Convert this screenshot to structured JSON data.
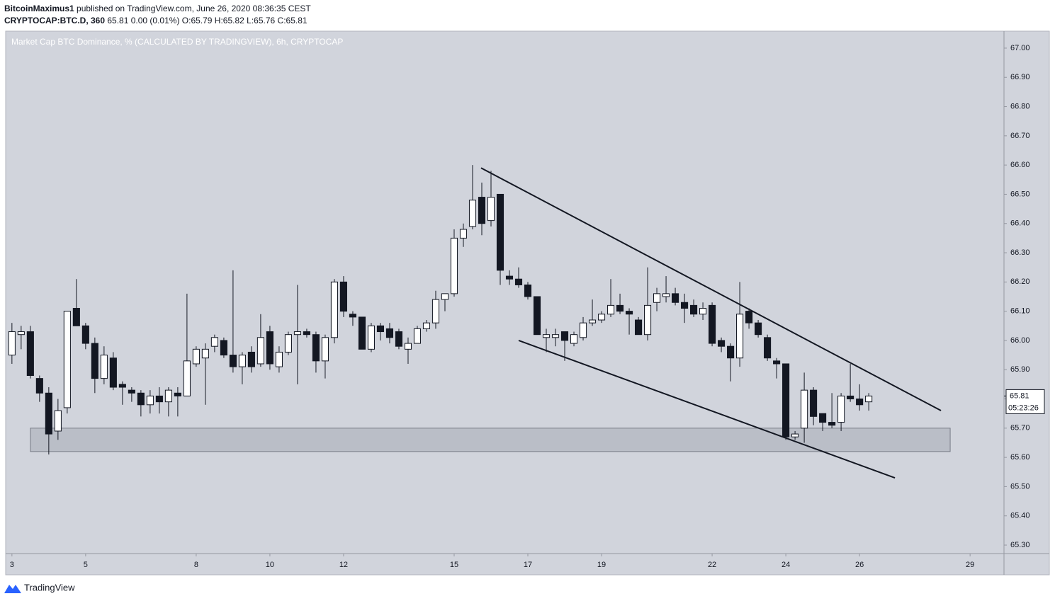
{
  "header": {
    "publisher": "BitcoinMaximus1",
    "published": "published on TradingView.com, June 26, 2020 08:36:35 CEST",
    "symbol": "CRYPTOCAP:BTC.D, 360",
    "quote": "65.81 0.00 (0.01%) O:65.79 H:65.82 L:65.76 C:65.81"
  },
  "footer": "TradingView",
  "chart_data": {
    "type": "candlestick",
    "title": "Market Cap BTC Dominance, % (CALCULATED BY TRADINGVIEW), 6h, CRYPTOCAP",
    "countdown": "05:23:26",
    "up_color": "#ffffff",
    "down_color": "#131722",
    "border_color": "#131722",
    "background": "#d1d4dc",
    "grid": false,
    "x": [
      3,
      3.25,
      3.5,
      3.75,
      4,
      4.25,
      4.5,
      4.75,
      5,
      5.25,
      5.5,
      5.75,
      6,
      6.25,
      6.5,
      6.75,
      7,
      7.25,
      7.5,
      7.75,
      8,
      8.25,
      8.5,
      8.75,
      9,
      9.25,
      9.5,
      9.75,
      10,
      10.25,
      10.5,
      10.75,
      11,
      11.25,
      11.5,
      11.75,
      12,
      12.25,
      12.5,
      12.75,
      13,
      13.25,
      13.5,
      13.75,
      14,
      14.25,
      14.5,
      14.75,
      15,
      15.25,
      15.5,
      15.75,
      16,
      16.25,
      16.5,
      16.75,
      17,
      17.25,
      17.5,
      17.75,
      18,
      18.25,
      18.5,
      18.75,
      19,
      19.25,
      19.5,
      19.75,
      20,
      20.25,
      20.5,
      20.75,
      21,
      21.25,
      21.5,
      21.75,
      22,
      22.25,
      22.5,
      22.75,
      23,
      23.25,
      23.5,
      23.75,
      24,
      24.25,
      24.5,
      24.75,
      25,
      25.25,
      25.5,
      25.75,
      26,
      26.25
    ],
    "open": [
      65.95,
      66.02,
      66.03,
      65.87,
      65.82,
      65.69,
      65.77,
      66.11,
      66.05,
      65.99,
      65.87,
      65.94,
      65.85,
      65.83,
      65.82,
      65.78,
      65.81,
      65.79,
      65.82,
      65.81,
      65.92,
      65.94,
      65.98,
      66.0,
      65.95,
      65.91,
      65.96,
      65.92,
      66.03,
      65.91,
      65.96,
      66.02,
      66.03,
      66.02,
      65.93,
      66.01,
      66.2,
      66.09,
      66.08,
      65.97,
      66.05,
      66.04,
      66.03,
      65.97,
      65.99,
      66.04,
      66.06,
      66.14,
      66.16,
      66.35,
      66.39,
      66.49,
      66.41,
      66.5,
      66.22,
      66.21,
      66.19,
      66.15,
      66.01,
      66.01,
      66.03,
      65.99,
      66.01,
      66.06,
      66.07,
      66.09,
      66.12,
      66.1,
      66.07,
      66.02,
      66.13,
      66.15,
      66.16,
      66.13,
      66.12,
      66.09,
      66.12,
      66.0,
      65.98,
      65.94,
      66.1,
      66.06,
      66.01,
      65.93,
      65.92,
      65.67,
      65.7,
      65.83,
      65.75,
      65.72,
      65.72,
      65.81,
      65.8,
      65.79
    ],
    "high": [
      66.06,
      66.05,
      66.05,
      65.88,
      65.84,
      65.8,
      66.1,
      66.21,
      66.06,
      66.01,
      65.98,
      65.96,
      65.86,
      65.84,
      65.83,
      65.83,
      65.84,
      65.84,
      65.84,
      66.16,
      65.98,
      65.99,
      66.02,
      66.01,
      66.24,
      65.96,
      65.98,
      66.09,
      66.05,
      65.98,
      66.03,
      66.19,
      66.04,
      66.03,
      66.02,
      66.21,
      66.22,
      66.1,
      66.08,
      66.06,
      66.06,
      66.06,
      66.04,
      66.01,
      66.05,
      66.07,
      66.17,
      66.16,
      66.38,
      66.4,
      66.6,
      66.54,
      66.58,
      66.5,
      66.24,
      66.25,
      66.2,
      66.15,
      66.04,
      66.04,
      66.03,
      66.03,
      66.08,
      66.14,
      66.1,
      66.21,
      66.16,
      66.11,
      66.08,
      66.25,
      66.18,
      66.22,
      66.18,
      66.16,
      66.14,
      66.13,
      66.13,
      66.01,
      65.99,
      66.2,
      66.11,
      66.07,
      66.02,
      65.94,
      65.92,
      65.69,
      65.89,
      65.84,
      65.75,
      65.82,
      65.82,
      65.92,
      65.85,
      65.82
    ],
    "low": [
      65.92,
      65.97,
      65.87,
      65.79,
      65.61,
      65.66,
      65.75,
      66.05,
      65.97,
      65.82,
      65.85,
      65.83,
      65.78,
      65.79,
      65.74,
      65.75,
      65.75,
      65.74,
      65.74,
      65.81,
      65.91,
      65.78,
      65.96,
      65.94,
      65.89,
      65.85,
      65.89,
      65.91,
      65.9,
      65.89,
      65.95,
      65.85,
      66.01,
      65.89,
      65.87,
      65.99,
      66.08,
      66.05,
      65.97,
      65.96,
      66.0,
      65.99,
      65.97,
      65.92,
      65.99,
      66.03,
      66.04,
      66.1,
      66.15,
      66.32,
      66.38,
      66.36,
      66.39,
      66.19,
      66.19,
      66.18,
      66.14,
      66.02,
      65.96,
      65.98,
      65.93,
      65.98,
      66.0,
      66.05,
      66.06,
      66.08,
      66.09,
      66.02,
      66.02,
      66.0,
      66.1,
      66.13,
      66.12,
      66.06,
      66.08,
      66.07,
      65.98,
      65.96,
      65.86,
      65.91,
      66.04,
      66.01,
      65.93,
      65.87,
      65.66,
      65.66,
      65.65,
      65.71,
      65.69,
      65.7,
      65.69,
      65.79,
      65.76,
      65.76
    ],
    "close": [
      66.03,
      66.03,
      65.88,
      65.82,
      65.68,
      65.76,
      66.1,
      66.05,
      65.99,
      65.87,
      65.95,
      65.84,
      65.84,
      65.82,
      65.78,
      65.81,
      65.79,
      65.83,
      65.81,
      65.93,
      65.97,
      65.97,
      66.01,
      65.95,
      65.91,
      65.95,
      65.91,
      66.01,
      65.92,
      65.96,
      66.02,
      66.03,
      66.02,
      65.93,
      66.01,
      66.2,
      66.1,
      66.08,
      65.97,
      66.05,
      66.03,
      66.01,
      65.98,
      65.99,
      66.04,
      66.06,
      66.14,
      66.16,
      66.35,
      66.38,
      66.48,
      66.4,
      66.49,
      66.24,
      66.21,
      66.19,
      66.15,
      66.02,
      66.02,
      66.02,
      66.0,
      66.02,
      66.06,
      66.07,
      66.09,
      66.12,
      66.1,
      66.09,
      66.02,
      66.12,
      66.16,
      66.16,
      66.13,
      66.11,
      66.09,
      66.11,
      65.99,
      65.98,
      65.94,
      66.09,
      66.06,
      66.02,
      65.94,
      65.92,
      65.67,
      65.68,
      65.83,
      65.74,
      65.72,
      65.71,
      65.81,
      65.8,
      65.78,
      65.81
    ],
    "trendlines": [
      {
        "x": [
          15.73,
          28.21
        ],
        "y": [
          66.59,
          65.76
        ]
      },
      {
        "x": [
          16.75,
          26.96
        ],
        "y": [
          66.0,
          65.53
        ]
      }
    ],
    "zone": {
      "x": [
        3.5,
        28.46
      ],
      "y": [
        65.62,
        65.7
      ]
    },
    "xlim": [
      2.83,
      29.92
    ],
    "xticks": [
      3,
      5,
      8,
      10,
      12,
      15,
      17,
      19,
      22,
      24,
      26,
      29
    ],
    "ylim": [
      65.271,
      67.058
    ],
    "yticks": [
      {
        "value": 65.3,
        "label": "65.30"
      },
      {
        "value": 65.4,
        "label": "65.40"
      },
      {
        "value": 65.5,
        "label": "65.50"
      },
      {
        "value": 65.6,
        "label": "65.60"
      },
      {
        "value": 65.7,
        "label": "65.70"
      },
      {
        "value": 65.8,
        "label": "65.80"
      },
      {
        "value": 65.9,
        "label": "65.90"
      },
      {
        "value": 66.0,
        "label": "66.00"
      },
      {
        "value": 66.1,
        "label": "66.10"
      },
      {
        "value": 66.2,
        "label": "66.20"
      },
      {
        "value": 66.3,
        "label": "66.30"
      },
      {
        "value": 66.4,
        "label": "66.40"
      },
      {
        "value": 66.5,
        "label": "66.50"
      },
      {
        "value": 66.6,
        "label": "66.60"
      },
      {
        "value": 66.7,
        "label": "66.70"
      },
      {
        "value": 66.8,
        "label": "66.80"
      },
      {
        "value": 66.9,
        "label": "66.90"
      },
      {
        "value": 67.0,
        "label": "67.00"
      }
    ]
  }
}
